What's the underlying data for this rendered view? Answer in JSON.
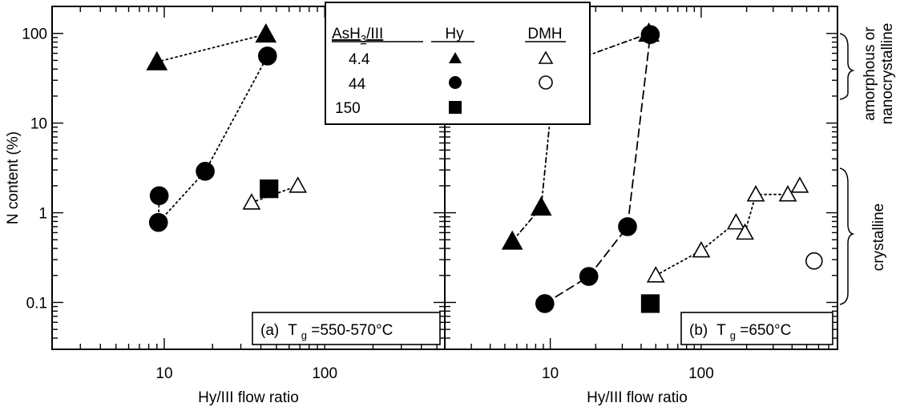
{
  "chart_data": [
    {
      "type": "scatter",
      "panel_label": "(a)",
      "condition_prefix": "T",
      "condition_sub": "g",
      "condition_value": "=550-570°C",
      "ylabel": "N content (%)",
      "xlabel": "Hy/III flow ratio",
      "x_scale": "log",
      "y_scale": "log",
      "xlim": [
        2,
        560
      ],
      "ylim": [
        0.03,
        200
      ],
      "x_ticks": [
        "10",
        "100"
      ],
      "y_ticks": [
        "0.1",
        "1",
        "10",
        "100"
      ],
      "series": [
        {
          "asH3_iii": "4.4",
          "precursor": "Hy",
          "marker": "triangle",
          "filled": true,
          "connect": "dotted",
          "points": [
            [
              9,
              48
            ],
            [
              43,
              98
            ]
          ]
        },
        {
          "asH3_iii": "44",
          "precursor": "Hy",
          "marker": "circle",
          "filled": true,
          "connect": "dotted",
          "points": [
            [
              9.3,
              1.55
            ],
            [
              9.2,
              0.78
            ],
            [
              18,
              2.9
            ],
            [
              44,
              56
            ]
          ]
        },
        {
          "asH3_iii": "150",
          "precursor": "Hy",
          "marker": "square",
          "filled": true,
          "connect": "none",
          "points": [
            [
              45,
              1.85
            ]
          ]
        },
        {
          "asH3_iii": "4.4",
          "precursor": "DMH",
          "marker": "triangle",
          "filled": false,
          "connect": "dotted",
          "points": [
            [
              35,
              1.3
            ],
            [
              68,
              2.0
            ]
          ]
        }
      ]
    },
    {
      "type": "scatter",
      "panel_label": "(b)",
      "condition_prefix": "T",
      "condition_sub": "g",
      "condition_value": "=650°C",
      "xlabel": "Hy/III flow ratio",
      "x_scale": "log",
      "y_scale": "log",
      "xlim": [
        2,
        800
      ],
      "ylim": [
        0.03,
        200
      ],
      "x_ticks": [
        "10",
        "100"
      ],
      "series": [
        {
          "asH3_iii": "4.4",
          "precursor": "Hy",
          "marker": "triangle",
          "filled": true,
          "connect": "dashed-dotted",
          "points": [
            [
              5.6,
              0.48
            ],
            [
              8.7,
              1.15
            ],
            [
              10.8,
              42
            ],
            [
              45,
              100
            ]
          ]
        },
        {
          "asH3_iii": "44",
          "precursor": "Hy",
          "marker": "circle",
          "filled": true,
          "connect": "dashed",
          "points": [
            [
              9.2,
              0.097
            ],
            [
              18,
              0.195
            ],
            [
              32.5,
              0.7
            ],
            [
              46,
              97
            ]
          ]
        },
        {
          "asH3_iii": "150",
          "precursor": "Hy",
          "marker": "square",
          "filled": true,
          "connect": "none",
          "points": [
            [
              46,
              0.097
            ]
          ]
        },
        {
          "asH3_iii": "4.4",
          "precursor": "DMH",
          "marker": "triangle",
          "filled": false,
          "connect": "dotted",
          "points": [
            [
              50,
              0.2
            ],
            [
              100,
              0.38
            ],
            [
              170,
              0.78
            ],
            [
              195,
              0.6
            ],
            [
              230,
              1.6
            ],
            [
              375,
              1.6
            ],
            [
              450,
              2.0
            ]
          ]
        },
        {
          "asH3_iii": "44",
          "precursor": "DMH",
          "marker": "circle",
          "filled": false,
          "connect": "none",
          "points": [
            [
              560,
              0.29
            ]
          ]
        }
      ]
    }
  ],
  "legend": {
    "col_ratio_prefix": "AsH",
    "col_ratio_sub": "3",
    "col_ratio_suffix": "/III",
    "col_hy": "Hy",
    "col_dmh": "DMH",
    "rows": [
      {
        "ratio": "4.4",
        "hy_marker": "filled-triangle",
        "dmh_marker": "open-triangle"
      },
      {
        "ratio": "44",
        "hy_marker": "filled-circle",
        "dmh_marker": "open-circle"
      },
      {
        "ratio": "150",
        "hy_marker": "filled-square",
        "dmh_marker": ""
      }
    ]
  },
  "annotations": {
    "top_bracket": [
      "amorphous or",
      "nanocrystalline"
    ],
    "bottom_bracket": "crystalline"
  }
}
